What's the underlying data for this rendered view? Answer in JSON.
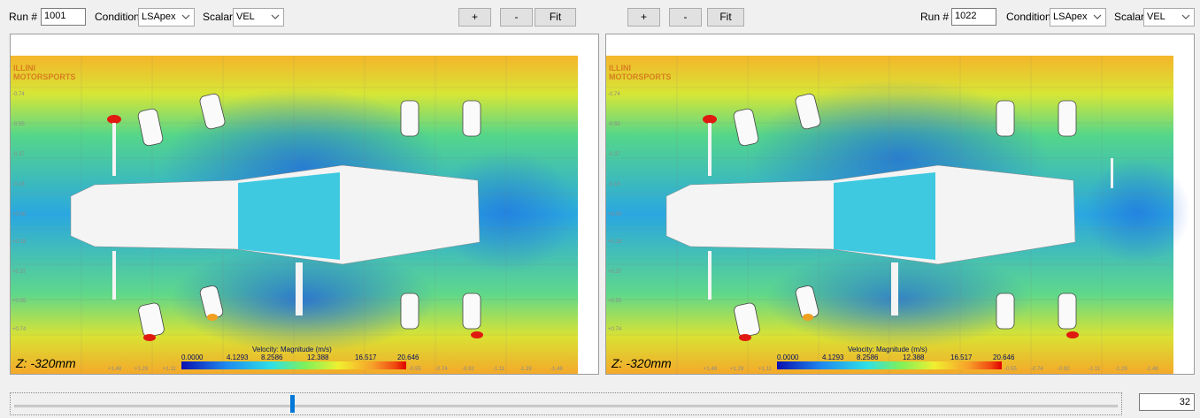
{
  "left": {
    "run_label": "Run #",
    "run_value": "1001",
    "condition_label": "Condition",
    "condition_value": "LSApex",
    "scalar_label": "Scalar",
    "scalar_value": "VEL",
    "zoom_in_label": "+",
    "zoom_out_label": "-",
    "fit_label": "Fit",
    "z_label": "Z: -320mm",
    "logo_line1": "ILLINI",
    "logo_line2": "MOTORSPORTS"
  },
  "right": {
    "run_label": "Run #",
    "run_value": "1022",
    "condition_label": "Condition",
    "condition_value": "LSApex",
    "scalar_label": "Scalar",
    "scalar_value": "VEL",
    "zoom_in_label": "+",
    "zoom_out_label": "-",
    "fit_label": "Fit",
    "z_label": "Z: -320mm",
    "logo_line1": "ILLINI",
    "logo_line2": "MOTORSPORTS"
  },
  "colorbar": {
    "title": "Velocity: Magnitude (m/s)",
    "ticks": [
      "0.0000",
      "4.1293",
      "8.2586",
      "12.388",
      "16.517",
      "20.646"
    ]
  },
  "slider": {
    "frame_value": "32",
    "position_fraction": 0.25
  },
  "icons": {
    "dropdown": "chevron-down-icon"
  },
  "colors": {
    "slider_thumb": "#0078d7",
    "logo": "#d87e1f"
  }
}
